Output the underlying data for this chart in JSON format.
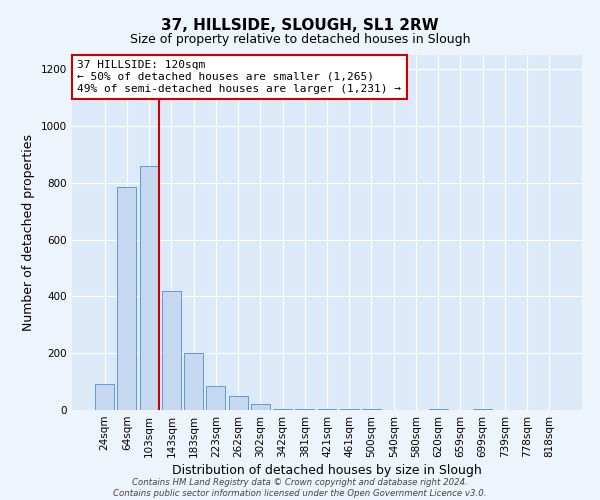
{
  "title": "37, HILLSIDE, SLOUGH, SL1 2RW",
  "subtitle": "Size of property relative to detached houses in Slough",
  "xlabel": "Distribution of detached houses by size in Slough",
  "ylabel": "Number of detached properties",
  "categories": [
    "24sqm",
    "64sqm",
    "103sqm",
    "143sqm",
    "183sqm",
    "223sqm",
    "262sqm",
    "302sqm",
    "342sqm",
    "381sqm",
    "421sqm",
    "461sqm",
    "500sqm",
    "540sqm",
    "580sqm",
    "620sqm",
    "659sqm",
    "699sqm",
    "739sqm",
    "778sqm",
    "818sqm"
  ],
  "values": [
    90,
    785,
    860,
    420,
    200,
    85,
    50,
    20,
    5,
    5,
    5,
    5,
    5,
    0,
    0,
    5,
    0,
    5,
    0,
    0,
    0
  ],
  "bar_color": "#c5d8f0",
  "bar_edge_color": "#5b9bd5",
  "vline_color": "#cc0000",
  "annotation_text": "37 HILLSIDE: 120sqm\n← 50% of detached houses are smaller (1,265)\n49% of semi-detached houses are larger (1,231) →",
  "annotation_box_color": "#ffffff",
  "annotation_box_edge": "#cc0000",
  "ylim": [
    0,
    1250
  ],
  "yticks": [
    0,
    200,
    400,
    600,
    800,
    1000,
    1200
  ],
  "background_color": "#dce9f7",
  "fig_background_color": "#eef4fc",
  "footer_line1": "Contains HM Land Registry data © Crown copyright and database right 2024.",
  "footer_line2": "Contains public sector information licensed under the Open Government Licence v3.0."
}
